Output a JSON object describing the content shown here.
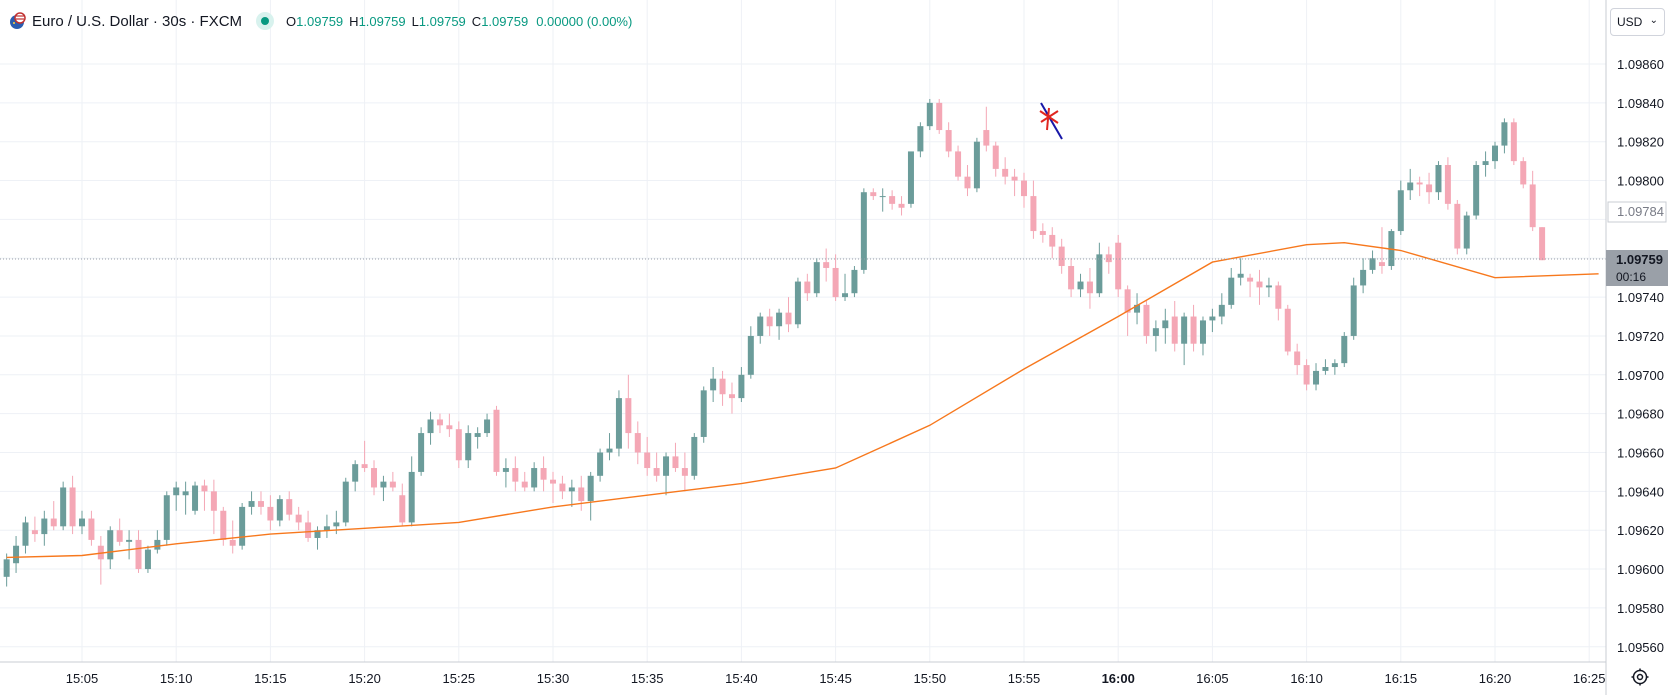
{
  "symbol": {
    "title": "Euro / U.S. Dollar · 30s · FXCM",
    "open_label": "O",
    "open": "1.09759",
    "high_label": "H",
    "high": "1.09759",
    "low_label": "L",
    "low": "1.09759",
    "close_label": "C",
    "close": "1.09759",
    "change": "0.00000 (0.00%)"
  },
  "currency_button": {
    "label": "USD"
  },
  "price_axis": {
    "labels": [
      "1.09860",
      "1.09840",
      "1.09820",
      "1.09800",
      "1.09740",
      "1.09720",
      "1.09700",
      "1.09680",
      "1.09660",
      "1.09640",
      "1.09620",
      "1.09600",
      "1.09580",
      "1.09560"
    ]
  },
  "time_axis": {
    "labels": [
      "15:05",
      "15:10",
      "15:15",
      "15:20",
      "15:25",
      "15:30",
      "15:35",
      "15:40",
      "15:45",
      "15:50",
      "15:55",
      "16:00",
      "16:05",
      "16:10",
      "16:15",
      "16:20",
      "16:25"
    ],
    "bold_label": "16:00"
  },
  "markers": {
    "last_price": "1.09759",
    "countdown": "00:16",
    "prev_close": "1.09784"
  },
  "colors": {
    "up": "#6b9c9a",
    "down": "#f4a7b5",
    "ma": "#f7781d",
    "grid": "#eef1f6",
    "axis_text": "#131722",
    "last_price_bg": "#9aa0a8",
    "drawing_blue": "#1818a8",
    "drawing_red": "#e0261f"
  },
  "chart_data": {
    "type": "candlestick",
    "interval": "30s",
    "ylim": [
      1.0955,
      1.09875
    ],
    "x_start": "15:01:00",
    "x_end": "16:25:30",
    "ohlc": [
      [
        1.09596,
        1.09608,
        1.09591,
        1.09605
      ],
      [
        1.09603,
        1.09617,
        1.09598,
        1.09612
      ],
      [
        1.09612,
        1.09627,
        1.09608,
        1.09624
      ],
      [
        1.0962,
        1.09627,
        1.09614,
        1.09618
      ],
      [
        1.09618,
        1.0963,
        1.09612,
        1.09626
      ],
      [
        1.09626,
        1.09635,
        1.0962,
        1.09622
      ],
      [
        1.09622,
        1.09645,
        1.0962,
        1.09642
      ],
      [
        1.09642,
        1.09648,
        1.09618,
        1.09622
      ],
      [
        1.09622,
        1.0963,
        1.09618,
        1.09626
      ],
      [
        1.09626,
        1.0963,
        1.09612,
        1.09615
      ],
      [
        1.09612,
        1.09617,
        1.09592,
        1.09605
      ],
      [
        1.09605,
        1.09622,
        1.096,
        1.0962
      ],
      [
        1.0962,
        1.09626,
        1.09612,
        1.09614
      ],
      [
        1.09614,
        1.0962,
        1.09605,
        1.09615
      ],
      [
        1.09615,
        1.0962,
        1.09598,
        1.096
      ],
      [
        1.096,
        1.09612,
        1.09598,
        1.0961
      ],
      [
        1.0961,
        1.0962,
        1.09608,
        1.09615
      ],
      [
        1.09615,
        1.0964,
        1.09612,
        1.09638
      ],
      [
        1.09638,
        1.09645,
        1.0963,
        1.09642
      ],
      [
        1.09638,
        1.09645,
        1.09628,
        1.0964
      ],
      [
        1.0963,
        1.09645,
        1.09628,
        1.09643
      ],
      [
        1.09643,
        1.09646,
        1.0963,
        1.0964
      ],
      [
        1.0964,
        1.09646,
        1.09618,
        1.0963
      ],
      [
        1.0963,
        1.09632,
        1.09612,
        1.09615
      ],
      [
        1.09615,
        1.09625,
        1.09608,
        1.09612
      ],
      [
        1.09612,
        1.09634,
        1.0961,
        1.09632
      ],
      [
        1.09632,
        1.0964,
        1.09628,
        1.09635
      ],
      [
        1.09635,
        1.0964,
        1.09628,
        1.09632
      ],
      [
        1.09632,
        1.09638,
        1.0962,
        1.09625
      ],
      [
        1.09625,
        1.09638,
        1.09622,
        1.09636
      ],
      [
        1.09636,
        1.0964,
        1.09625,
        1.09628
      ],
      [
        1.09628,
        1.09632,
        1.0962,
        1.09624
      ],
      [
        1.09624,
        1.0963,
        1.09614,
        1.09616
      ],
      [
        1.09616,
        1.09622,
        1.0961,
        1.0962
      ],
      [
        1.0962,
        1.09628,
        1.09616,
        1.09622
      ],
      [
        1.09622,
        1.0963,
        1.09618,
        1.09624
      ],
      [
        1.09624,
        1.09647,
        1.09622,
        1.09645
      ],
      [
        1.09645,
        1.09656,
        1.0964,
        1.09654
      ],
      [
        1.09654,
        1.09666,
        1.0965,
        1.09652
      ],
      [
        1.09652,
        1.09656,
        1.09638,
        1.09642
      ],
      [
        1.09642,
        1.09648,
        1.09635,
        1.09645
      ],
      [
        1.09645,
        1.0965,
        1.0964,
        1.09642
      ],
      [
        1.09638,
        1.09644,
        1.09622,
        1.09624
      ],
      [
        1.09624,
        1.09658,
        1.09622,
        1.0965
      ],
      [
        1.0965,
        1.09673,
        1.09648,
        1.0967
      ],
      [
        1.0967,
        1.09681,
        1.09664,
        1.09677
      ],
      [
        1.09677,
        1.0968,
        1.0967,
        1.09674
      ],
      [
        1.09674,
        1.0968,
        1.09668,
        1.09672
      ],
      [
        1.09672,
        1.09676,
        1.09652,
        1.09656
      ],
      [
        1.09656,
        1.09674,
        1.09652,
        1.0967
      ],
      [
        1.09668,
        1.09673,
        1.09662,
        1.0967
      ],
      [
        1.0967,
        1.0968,
        1.09668,
        1.09677
      ],
      [
        1.09682,
        1.09684,
        1.09648,
        1.0965
      ],
      [
        1.0965,
        1.09657,
        1.09642,
        1.09652
      ],
      [
        1.09652,
        1.09658,
        1.0964,
        1.09645
      ],
      [
        1.09645,
        1.0965,
        1.0964,
        1.09642
      ],
      [
        1.09642,
        1.09655,
        1.0964,
        1.09652
      ],
      [
        1.09652,
        1.09658,
        1.0964,
        1.09646
      ],
      [
        1.09646,
        1.0965,
        1.09634,
        1.09644
      ],
      [
        1.09644,
        1.09648,
        1.09636,
        1.0964
      ],
      [
        1.0964,
        1.09646,
        1.09632,
        1.09642
      ],
      [
        1.09642,
        1.09648,
        1.0963,
        1.09635
      ],
      [
        1.09635,
        1.0965,
        1.09625,
        1.09648
      ],
      [
        1.09648,
        1.09662,
        1.09645,
        1.0966
      ],
      [
        1.0966,
        1.0967,
        1.09656,
        1.09662
      ],
      [
        1.09662,
        1.09692,
        1.09658,
        1.09688
      ],
      [
        1.09688,
        1.097,
        1.09662,
        1.0967
      ],
      [
        1.0967,
        1.09676,
        1.09654,
        1.0966
      ],
      [
        1.0966,
        1.09668,
        1.09648,
        1.09652
      ],
      [
        1.09652,
        1.0966,
        1.09645,
        1.09648
      ],
      [
        1.09648,
        1.0966,
        1.09638,
        1.09658
      ],
      [
        1.09658,
        1.09665,
        1.0965,
        1.09652
      ],
      [
        1.09652,
        1.0966,
        1.0964,
        1.09648
      ],
      [
        1.09648,
        1.0967,
        1.09646,
        1.09668
      ],
      [
        1.09668,
        1.09694,
        1.09665,
        1.09692
      ],
      [
        1.09692,
        1.09704,
        1.09686,
        1.09698
      ],
      [
        1.09698,
        1.09702,
        1.09684,
        1.0969
      ],
      [
        1.0969,
        1.09696,
        1.0968,
        1.09688
      ],
      [
        1.09688,
        1.09704,
        1.09686,
        1.097
      ],
      [
        1.097,
        1.09725,
        1.09698,
        1.0972
      ],
      [
        1.0972,
        1.09732,
        1.09716,
        1.0973
      ],
      [
        1.0973,
        1.09734,
        1.0972,
        1.09725
      ],
      [
        1.09725,
        1.09734,
        1.09718,
        1.09732
      ],
      [
        1.09732,
        1.0974,
        1.09722,
        1.09726
      ],
      [
        1.09726,
        1.0975,
        1.09724,
        1.09748
      ],
      [
        1.09748,
        1.09752,
        1.09738,
        1.09742
      ],
      [
        1.09742,
        1.0976,
        1.0974,
        1.09758
      ],
      [
        1.09758,
        1.09765,
        1.09748,
        1.09755
      ],
      [
        1.09755,
        1.09762,
        1.09738,
        1.0974
      ],
      [
        1.0974,
        1.09752,
        1.09738,
        1.09742
      ],
      [
        1.09742,
        1.09756,
        1.0974,
        1.09754
      ],
      [
        1.09754,
        1.09796,
        1.09752,
        1.09794
      ],
      [
        1.09794,
        1.09796,
        1.0979,
        1.09792
      ],
      [
        1.09792,
        1.09796,
        1.09784,
        1.09792
      ],
      [
        1.09792,
        1.09795,
        1.09785,
        1.09788
      ],
      [
        1.09788,
        1.09792,
        1.09782,
        1.09786
      ],
      [
        1.09788,
        1.09814,
        1.09786,
        1.09815
      ],
      [
        1.09815,
        1.0983,
        1.09812,
        1.09828
      ],
      [
        1.09828,
        1.09842,
        1.09826,
        1.0984
      ],
      [
        1.0984,
        1.09842,
        1.09824,
        1.09826
      ],
      [
        1.09826,
        1.0983,
        1.09812,
        1.09815
      ],
      [
        1.09815,
        1.09818,
        1.098,
        1.09802
      ],
      [
        1.09802,
        1.09808,
        1.09792,
        1.09796
      ],
      [
        1.09796,
        1.09822,
        1.09794,
        1.0982
      ],
      [
        1.09826,
        1.09838,
        1.09815,
        1.09818
      ],
      [
        1.09818,
        1.0982,
        1.09802,
        1.09806
      ],
      [
        1.09806,
        1.09812,
        1.09798,
        1.09802
      ],
      [
        1.09802,
        1.09806,
        1.09792,
        1.098
      ],
      [
        1.098,
        1.09804,
        1.09786,
        1.09792
      ],
      [
        1.09792,
        1.098,
        1.0977,
        1.09774
      ],
      [
        1.09774,
        1.09778,
        1.09768,
        1.09772
      ],
      [
        1.09772,
        1.09776,
        1.0976,
        1.09766
      ],
      [
        1.09766,
        1.0977,
        1.09752,
        1.09756
      ],
      [
        1.09756,
        1.0976,
        1.0974,
        1.09744
      ],
      [
        1.09744,
        1.09752,
        1.0974,
        1.09748
      ],
      [
        1.09748,
        1.09755,
        1.09734,
        1.09742
      ],
      [
        1.09742,
        1.09768,
        1.0974,
        1.09762
      ],
      [
        1.09762,
        1.09766,
        1.09752,
        1.09758
      ],
      [
        1.09768,
        1.09772,
        1.0974,
        1.09744
      ],
      [
        1.09744,
        1.09746,
        1.0972,
        1.09732
      ],
      [
        1.09732,
        1.09742,
        1.09726,
        1.09736
      ],
      [
        1.09736,
        1.09738,
        1.09716,
        1.0972
      ],
      [
        1.0972,
        1.09728,
        1.09712,
        1.09724
      ],
      [
        1.09724,
        1.09734,
        1.09716,
        1.09728
      ],
      [
        1.0973,
        1.09738,
        1.09712,
        1.09716
      ],
      [
        1.09716,
        1.09732,
        1.09705,
        1.0973
      ],
      [
        1.0973,
        1.09736,
        1.09712,
        1.09716
      ],
      [
        1.09716,
        1.0973,
        1.0971,
        1.09728
      ],
      [
        1.09728,
        1.09734,
        1.09722,
        1.0973
      ],
      [
        1.0973,
        1.09742,
        1.09726,
        1.09736
      ],
      [
        1.09736,
        1.09755,
        1.09734,
        1.0975
      ],
      [
        1.0975,
        1.0976,
        1.09746,
        1.09752
      ],
      [
        1.0975,
        1.09752,
        1.0974,
        1.09748
      ],
      [
        1.09748,
        1.09754,
        1.09736,
        1.09745
      ],
      [
        1.09745,
        1.0975,
        1.0974,
        1.09746
      ],
      [
        1.09746,
        1.09748,
        1.09728,
        1.09734
      ],
      [
        1.09734,
        1.09736,
        1.0971,
        1.09712
      ],
      [
        1.09712,
        1.09716,
        1.097,
        1.09705
      ],
      [
        1.09705,
        1.09708,
        1.09692,
        1.09695
      ],
      [
        1.09695,
        1.09706,
        1.09692,
        1.09702
      ],
      [
        1.09702,
        1.09708,
        1.097,
        1.09704
      ],
      [
        1.09704,
        1.09708,
        1.097,
        1.09706
      ],
      [
        1.09706,
        1.09722,
        1.09704,
        1.0972
      ],
      [
        1.0972,
        1.0975,
        1.09718,
        1.09746
      ],
      [
        1.09746,
        1.0976,
        1.09742,
        1.09754
      ],
      [
        1.09754,
        1.09764,
        1.09752,
        1.0976
      ],
      [
        1.09758,
        1.09776,
        1.09752,
        1.09756
      ],
      [
        1.09756,
        1.09775,
        1.09754,
        1.09774
      ],
      [
        1.09774,
        1.098,
        1.09772,
        1.09795
      ],
      [
        1.09795,
        1.09806,
        1.0979,
        1.09799
      ],
      [
        1.09799,
        1.09802,
        1.09792,
        1.09798
      ],
      [
        1.09798,
        1.09804,
        1.09788,
        1.09794
      ],
      [
        1.09794,
        1.0981,
        1.0979,
        1.09808
      ],
      [
        1.09808,
        1.09812,
        1.09785,
        1.09788
      ],
      [
        1.09788,
        1.0979,
        1.09762,
        1.09765
      ],
      [
        1.09765,
        1.09784,
        1.09762,
        1.09782
      ],
      [
        1.09782,
        1.0981,
        1.0978,
        1.09808
      ],
      [
        1.09808,
        1.09815,
        1.09802,
        1.0981
      ],
      [
        1.0981,
        1.0982,
        1.09806,
        1.09818
      ],
      [
        1.09818,
        1.09832,
        1.09814,
        1.0983
      ],
      [
        1.0983,
        1.09832,
        1.09808,
        1.0981
      ],
      [
        1.0981,
        1.09812,
        1.09796,
        1.09798
      ],
      [
        1.09798,
        1.09805,
        1.09774,
        1.09776
      ],
      [
        1.09776,
        1.09776,
        1.09759,
        1.09759
      ]
    ],
    "moving_average": [
      [
        "15:01:00",
        1.09606
      ],
      [
        "15:05:00",
        1.09607
      ],
      [
        "15:10:00",
        1.09613
      ],
      [
        "15:15:00",
        1.09618
      ],
      [
        "15:20:00",
        1.09621
      ],
      [
        "15:25:00",
        1.09624
      ],
      [
        "15:30:00",
        1.09632
      ],
      [
        "15:35:00",
        1.09638
      ],
      [
        "15:40:00",
        1.09644
      ],
      [
        "15:45:00",
        1.09652
      ],
      [
        "15:50:00",
        1.09674
      ],
      [
        "15:55:00",
        1.09703
      ],
      [
        "16:00:00",
        1.0973
      ],
      [
        "16:05:00",
        1.09758
      ],
      [
        "16:10:00",
        1.09767
      ],
      [
        "16:12:00",
        1.09768
      ],
      [
        "16:15:00",
        1.09764
      ],
      [
        "16:20:00",
        1.0975
      ],
      [
        "16:25:30",
        1.09752
      ]
    ]
  }
}
